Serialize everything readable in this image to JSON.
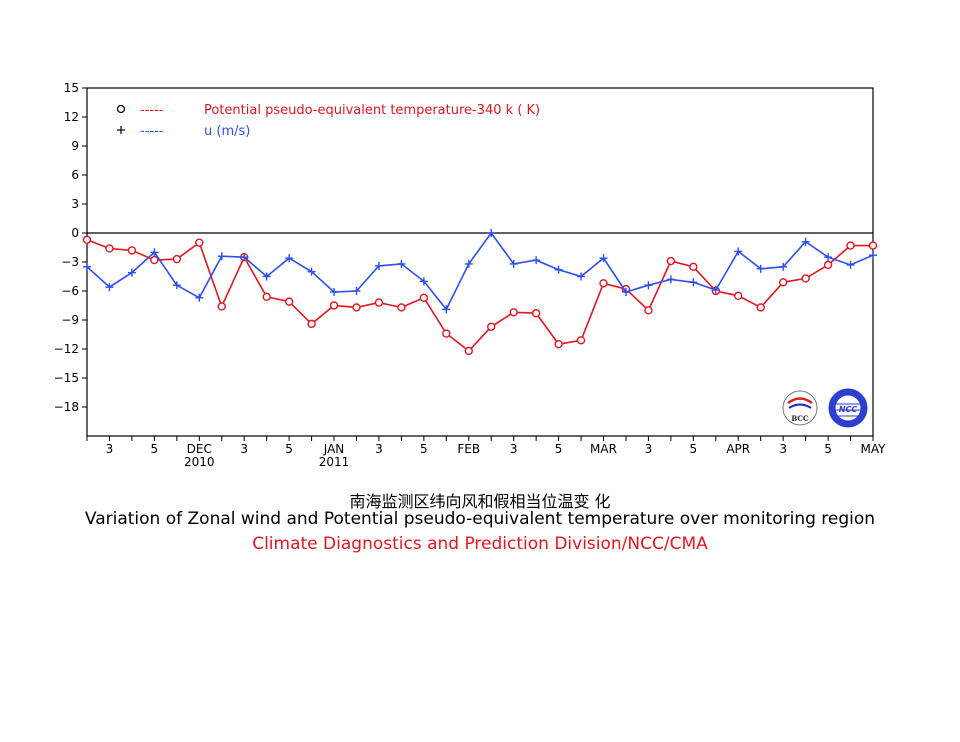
{
  "captions": {
    "chinese": "南海监测区纬向风和假相当位温变 化",
    "english": "Variation of Zonal wind and Potential pseudo-equivalent temperature over monitoring region",
    "organization": "Climate Diagnostics and Prediction Division/NCC/CMA"
  },
  "logos": {
    "left": "BCC",
    "right": "NCC"
  },
  "colors": {
    "temperature": "#e8141e",
    "wind": "#2b4ff0",
    "organization": "#e8141e"
  },
  "chart_data": {
    "type": "line",
    "ylim": [
      -21,
      15
    ],
    "yticks": [
      15,
      12,
      9,
      6,
      3,
      0,
      -3,
      -6,
      -9,
      -12,
      -15,
      -18
    ],
    "grid": false,
    "legend_position": "top-left",
    "x_tick_labels": [
      {
        "x": 1,
        "label": "3"
      },
      {
        "x": 3,
        "label": "5"
      },
      {
        "x": 5,
        "label": "DEC",
        "sub": "2010"
      },
      {
        "x": 7,
        "label": "3"
      },
      {
        "x": 9,
        "label": "5"
      },
      {
        "x": 11,
        "label": "JAN",
        "sub": "2011"
      },
      {
        "x": 13,
        "label": "3"
      },
      {
        "x": 15,
        "label": "5"
      },
      {
        "x": 17,
        "label": "FEB"
      },
      {
        "x": 19,
        "label": "3"
      },
      {
        "x": 21,
        "label": "5"
      },
      {
        "x": 23,
        "label": "MAR"
      },
      {
        "x": 25,
        "label": "3"
      },
      {
        "x": 27,
        "label": "5"
      },
      {
        "x": 29,
        "label": "APR"
      },
      {
        "x": 31,
        "label": "3"
      },
      {
        "x": 33,
        "label": "5"
      },
      {
        "x": 35,
        "label": "MAY"
      }
    ],
    "series": [
      {
        "name": "Potential pseudo-equivalent temperature-340 k  ( K)",
        "marker": "o",
        "legend_symbol": "o",
        "legend_dash": "-----",
        "color": "#e8141e",
        "values": [
          -0.7,
          -1.6,
          -1.8,
          -2.8,
          -2.7,
          -1.0,
          -7.6,
          -2.5,
          -6.6,
          -7.1,
          -9.4,
          -7.5,
          -7.7,
          -7.2,
          -7.7,
          -6.7,
          -10.4,
          -12.2,
          -9.7,
          -8.2,
          -8.3,
          -11.5,
          -11.1,
          -5.2,
          -5.8,
          -8.0,
          -2.9,
          -3.5,
          -6.0,
          -6.5,
          -7.7,
          -5.1,
          -4.7,
          -3.3,
          -1.3,
          -1.3
        ]
      },
      {
        "name": "u  (m/s)",
        "marker": "+",
        "legend_symbol": "+",
        "legend_dash": "-----",
        "color": "#2b4ff0",
        "values": [
          -3.5,
          -5.6,
          -4.1,
          -2.0,
          -5.4,
          -6.7,
          -2.4,
          -2.5,
          -4.5,
          -2.6,
          -4.0,
          -6.1,
          -6.0,
          -3.4,
          -3.2,
          -5.0,
          -7.9,
          -3.2,
          0.0,
          -3.2,
          -2.8,
          -3.8,
          -4.5,
          -2.6,
          -6.1,
          -5.4,
          -4.8,
          -5.1,
          -5.9,
          -1.9,
          -3.7,
          -3.5,
          -0.9,
          -2.5,
          -3.3,
          -2.3
        ]
      }
    ]
  }
}
